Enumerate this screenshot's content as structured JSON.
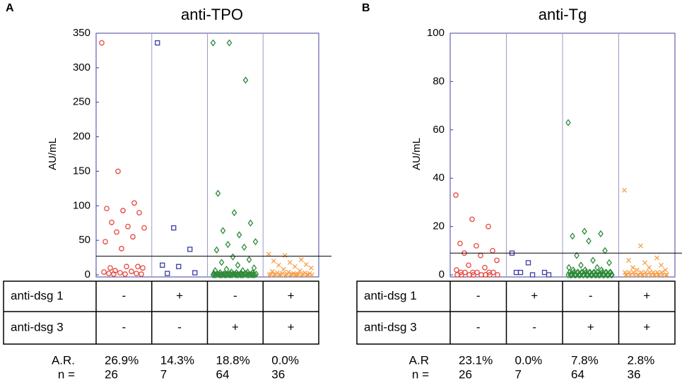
{
  "chart_data": [
    {
      "type": "strip",
      "panel": "A",
      "title": "anti-TPO",
      "ylabel": "AU/mL",
      "ylim": [
        0,
        350
      ],
      "yticks": [
        0,
        50,
        100,
        150,
        200,
        250,
        300,
        350
      ],
      "threshold": 27,
      "series": [
        {
          "color": "#e8453c",
          "marker": "circle",
          "values": [
            336,
            150,
            104,
            96,
            93,
            90,
            76,
            70,
            68,
            62,
            55,
            48,
            38,
            12,
            10,
            12,
            10,
            6,
            5,
            4,
            3,
            2,
            2,
            1,
            1,
            1
          ]
        },
        {
          "color": "#3a3aa8",
          "marker": "square",
          "values": [
            336,
            68,
            37,
            14,
            12,
            3,
            2
          ]
        },
        {
          "color": "#2e8b3a",
          "marker": "diamond",
          "values": [
            336,
            336,
            282,
            118,
            90,
            75,
            64,
            58,
            48,
            44,
            40,
            36,
            26,
            22,
            18,
            14,
            10,
            8,
            6,
            6,
            4,
            4,
            3,
            3,
            3,
            2,
            2,
            2,
            2,
            2,
            1,
            1,
            1,
            1,
            1,
            1,
            1,
            1,
            1,
            1,
            0,
            0,
            0,
            0,
            0,
            0,
            0,
            0,
            0,
            0,
            0,
            0,
            0,
            0,
            0,
            0,
            0,
            0,
            0,
            0,
            0,
            0,
            0,
            0
          ]
        },
        {
          "color": "#f5a04a",
          "marker": "x",
          "values": [
            30,
            28,
            22,
            20,
            18,
            15,
            14,
            12,
            10,
            8,
            6,
            5,
            4,
            3,
            3,
            2,
            2,
            2,
            1,
            1,
            1,
            1,
            1,
            1,
            0,
            0,
            0,
            0,
            0,
            0,
            0,
            0,
            0,
            0,
            0,
            0
          ]
        }
      ],
      "table": [
        {
          "label": "anti-dsg 1",
          "cells": [
            "-",
            "+",
            "-",
            "+"
          ]
        },
        {
          "label": "anti-dsg 3",
          "cells": [
            "-",
            "-",
            "+",
            "+"
          ]
        }
      ],
      "ar": {
        "label": "A.R.",
        "values": [
          26.9,
          14.3,
          18.8,
          0.0
        ],
        "value_labels": [
          "26.9%",
          "14.3%",
          "18.8%",
          "0.0%"
        ]
      },
      "n": {
        "label": "n =",
        "values": [
          26,
          7,
          64,
          36
        ]
      }
    },
    {
      "type": "strip",
      "panel": "B",
      "title": "anti-Tg",
      "ylabel": "AU/mL",
      "ylim": [
        0,
        100
      ],
      "yticks": [
        0,
        20,
        40,
        60,
        80,
        100
      ],
      "threshold": 9,
      "series": [
        {
          "color": "#e8453c",
          "marker": "circle",
          "values": [
            33,
            23,
            20,
            13,
            12,
            10,
            9,
            8,
            6,
            4,
            3,
            2,
            1,
            1,
            1,
            1,
            1,
            1,
            0,
            0,
            0,
            0,
            0,
            0,
            0,
            0
          ]
        },
        {
          "color": "#3a3aa8",
          "marker": "square",
          "values": [
            9,
            5,
            1,
            1,
            0,
            0,
            1
          ]
        },
        {
          "color": "#2e8b3a",
          "marker": "diamond",
          "values": [
            63,
            18,
            17,
            16,
            14,
            10,
            8,
            6,
            5,
            4,
            3,
            3,
            2,
            2,
            2,
            1,
            1,
            1,
            1,
            1,
            1,
            1,
            1,
            1,
            1,
            1,
            1,
            1,
            1,
            1,
            1,
            1,
            0,
            0,
            0,
            0,
            0,
            0,
            0,
            0,
            0,
            0,
            0,
            0,
            0,
            0,
            0,
            0,
            0,
            0,
            0,
            0,
            0,
            0,
            0,
            0,
            0,
            0,
            0,
            0,
            0,
            0,
            0,
            0
          ]
        },
        {
          "color": "#f5a04a",
          "marker": "x",
          "values": [
            35,
            12,
            7,
            6,
            5,
            4,
            3,
            3,
            2,
            2,
            1,
            1,
            1,
            1,
            1,
            1,
            1,
            1,
            1,
            0,
            0,
            0,
            0,
            0,
            0,
            0,
            0,
            0,
            0,
            0,
            0,
            0,
            0,
            0,
            0,
            0
          ]
        }
      ],
      "table": [
        {
          "label": "anti-dsg 1",
          "cells": [
            "-",
            "+",
            "-",
            "+"
          ]
        },
        {
          "label": "anti-dsg 3",
          "cells": [
            "-",
            "-",
            "+",
            "+"
          ]
        }
      ],
      "ar": {
        "label": "A.R",
        "values": [
          23.1,
          0.0,
          7.8,
          2.8
        ],
        "value_labels": [
          "23.1%",
          "0.0%",
          "7.8%",
          "2.8%"
        ]
      },
      "n": {
        "label": "n =",
        "values": [
          26,
          7,
          64,
          36
        ]
      }
    }
  ]
}
